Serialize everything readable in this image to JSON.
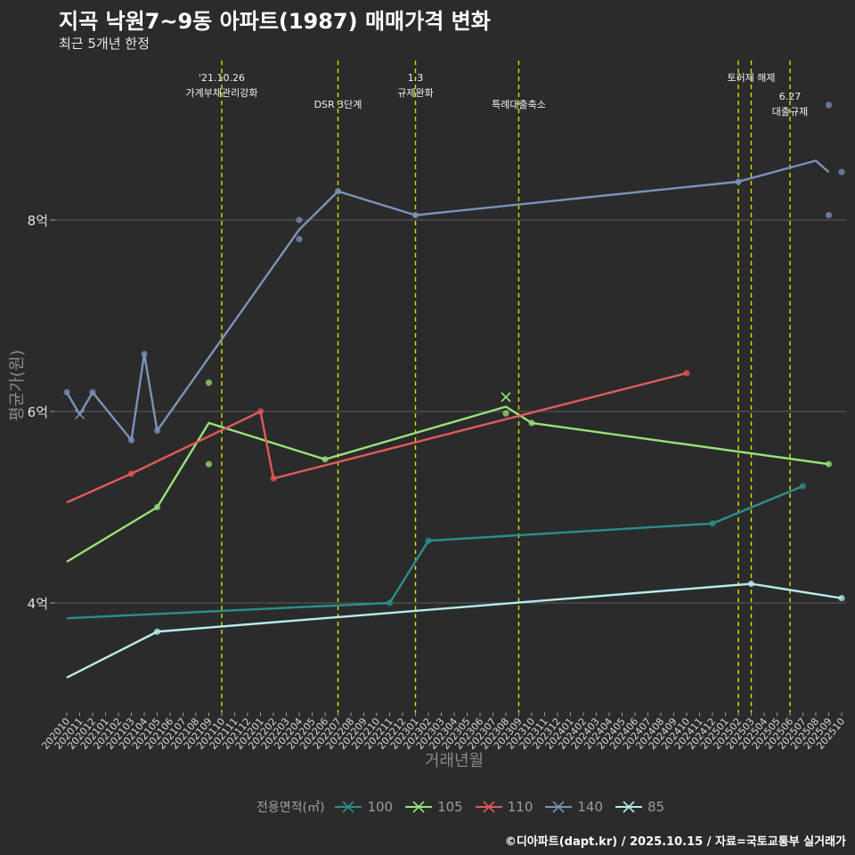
{
  "title": "지곡 낙원7~9동 아파트(1987) 매매가격 변화",
  "subtitle": "최근 5개년 한정",
  "caption": "©디아파트(dapt.kr) / 2025.10.15 / 자료=국토교통부 실거래가",
  "chart_data": {
    "type": "line",
    "xlabel": "거래년월",
    "ylabel": "평균가(원)",
    "categories": [
      "202010",
      "202011",
      "202012",
      "202101",
      "202102",
      "202103",
      "202104",
      "202105",
      "202106",
      "202107",
      "202108",
      "202109",
      "202110",
      "202111",
      "202112",
      "202201",
      "202202",
      "202203",
      "202204",
      "202205",
      "202206",
      "202207",
      "202208",
      "202209",
      "202210",
      "202211",
      "202212",
      "202301",
      "202302",
      "202303",
      "202304",
      "202305",
      "202306",
      "202307",
      "202308",
      "202309",
      "202310",
      "202311",
      "202312",
      "202401",
      "202402",
      "202403",
      "202404",
      "202405",
      "202406",
      "202407",
      "202408",
      "202409",
      "202410",
      "202411",
      "202412",
      "202501",
      "202502",
      "202503",
      "202504",
      "202505",
      "202506",
      "202507",
      "202508",
      "202509",
      "202510"
    ],
    "y_ticks": [
      {
        "value": 4,
        "label": "4억"
      },
      {
        "value": 6,
        "label": "6억"
      },
      {
        "value": 8,
        "label": "8억"
      }
    ],
    "ylim": [
      2.9,
      9.3
    ],
    "grid": true,
    "legend_title": "전용면적(㎡)",
    "legend_position": "bottom",
    "series": [
      {
        "name": "100",
        "color": "#2a8f8c",
        "line": [
          [
            "202010",
            3.84
          ],
          [
            "202211",
            4.0
          ],
          [
            "202302",
            4.65
          ],
          [
            "202412",
            4.83
          ],
          [
            "202507",
            5.22
          ]
        ],
        "points": [
          [
            "202211",
            4.0
          ],
          [
            "202302",
            4.65
          ],
          [
            "202412",
            4.83
          ],
          [
            "202507",
            5.22
          ]
        ]
      },
      {
        "name": "105",
        "color": "#98e27a",
        "line": [
          [
            "202010",
            4.43
          ],
          [
            "202105",
            5.0
          ],
          [
            "202109",
            5.88
          ],
          [
            "202206",
            5.5
          ],
          [
            "202308",
            6.05
          ],
          [
            "202310",
            5.88
          ],
          [
            "202509",
            5.45
          ]
        ],
        "points": [
          [
            "202105",
            5.0
          ],
          [
            "202109",
            5.45
          ],
          [
            "202109",
            6.3
          ],
          [
            "202206",
            5.5
          ],
          [
            "202308",
            5.98
          ],
          [
            "202310",
            5.88
          ],
          [
            "202509",
            5.45
          ]
        ]
      },
      {
        "name": "110",
        "color": "#e15a5a",
        "line": [
          [
            "202010",
            5.05
          ],
          [
            "202103",
            5.35
          ],
          [
            "202201",
            6.0
          ],
          [
            "202202",
            5.3
          ],
          [
            "202410",
            6.4
          ]
        ],
        "points": [
          [
            "202103",
            5.35
          ],
          [
            "202201",
            6.0
          ],
          [
            "202202",
            5.3
          ],
          [
            "202410",
            6.4
          ]
        ]
      },
      {
        "name": "140",
        "color": "#7b93b8",
        "line": [
          [
            "202010",
            6.2
          ],
          [
            "202011",
            5.97
          ],
          [
            "202012",
            6.2
          ],
          [
            "202103",
            5.7
          ],
          [
            "202104",
            6.6
          ],
          [
            "202105",
            5.8
          ],
          [
            "202204",
            7.9
          ],
          [
            "202207",
            8.3
          ],
          [
            "202301",
            8.05
          ],
          [
            "202502",
            8.4
          ],
          [
            "202508",
            8.62
          ],
          [
            "202509",
            8.5
          ]
        ],
        "points": [
          [
            "202010",
            6.2
          ],
          [
            "202012",
            6.2
          ],
          [
            "202103",
            5.7
          ],
          [
            "202104",
            6.6
          ],
          [
            "202105",
            5.8
          ],
          [
            "202204",
            7.8
          ],
          [
            "202204",
            8.0
          ],
          [
            "202207",
            8.3
          ],
          [
            "202301",
            8.05
          ],
          [
            "202502",
            8.4
          ],
          [
            "202509",
            8.05
          ],
          [
            "202509",
            9.2
          ],
          [
            "202510",
            8.5
          ]
        ]
      },
      {
        "name": "85",
        "color": "#b8ecec",
        "line": [
          [
            "202010",
            3.22
          ],
          [
            "202105",
            3.7
          ],
          [
            "202503",
            4.2
          ],
          [
            "202510",
            4.05
          ]
        ],
        "points": [
          [
            "202105",
            3.7
          ],
          [
            "202503",
            4.2
          ],
          [
            "202510",
            4.05
          ]
        ]
      }
    ],
    "cross_markers": [
      {
        "series": "140",
        "x": "202011",
        "y": 5.97
      },
      {
        "series": "105",
        "x": "202308",
        "y": 6.15
      }
    ],
    "events": [
      {
        "x": "202110",
        "lines": [
          "'21.10.26",
          "가계부채관리강화"
        ],
        "row": 0
      },
      {
        "x": "202207",
        "lines": [
          "DSR 3단계"
        ],
        "row": 1
      },
      {
        "x": "202301",
        "lines": [
          "1.3",
          "규제완화"
        ],
        "row": 0
      },
      {
        "x": "202309",
        "lines": [
          "특례대출축소"
        ],
        "row": 1
      },
      {
        "x": "202502",
        "lines": [],
        "row": 0
      },
      {
        "x": "202503",
        "lines": [
          "토허제 해제"
        ],
        "row": 0
      },
      {
        "x": "202506",
        "lines": [
          "6.27",
          "대출규제"
        ],
        "row": 2
      }
    ]
  }
}
